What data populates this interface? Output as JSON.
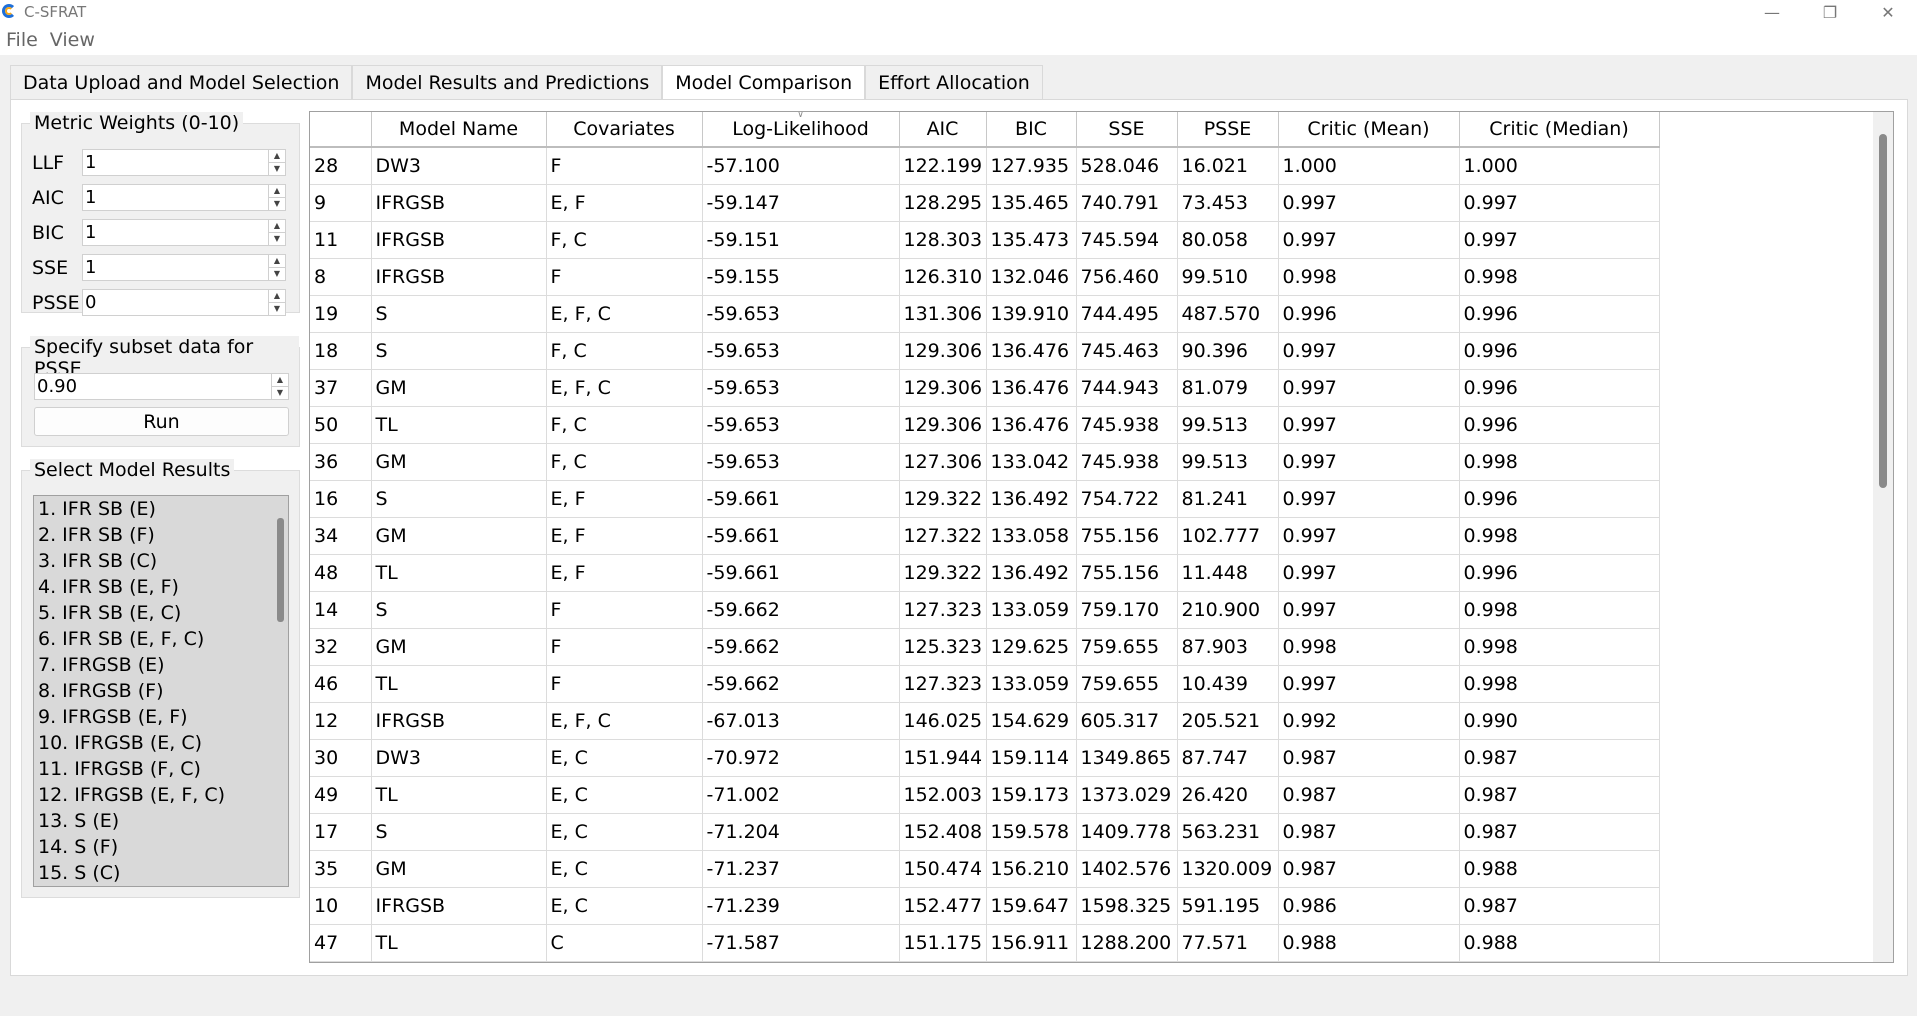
{
  "window": {
    "title": "C-SFRAT"
  },
  "menu": [
    "File",
    "View"
  ],
  "tabs": [
    {
      "label": "Data Upload and Model Selection",
      "active": false
    },
    {
      "label": "Model Results and Predictions",
      "active": false
    },
    {
      "label": "Model Comparison",
      "active": true
    },
    {
      "label": "Effort Allocation",
      "active": false
    }
  ],
  "weights": {
    "title": "Metric Weights (0-10)",
    "items": [
      {
        "label": "LLF",
        "value": "1"
      },
      {
        "label": "AIC",
        "value": "1"
      },
      {
        "label": "BIC",
        "value": "1"
      },
      {
        "label": "SSE",
        "value": "1"
      },
      {
        "label": "PSSE",
        "value": "0"
      }
    ]
  },
  "subset": {
    "title": "Specify subset data for PSSE",
    "value": "0.90",
    "run_label": "Run"
  },
  "results": {
    "title": "Select Model Results",
    "items": [
      "1. IFR SB (E)",
      "2. IFR SB (F)",
      "3. IFR SB (C)",
      "4. IFR SB (E, F)",
      "5. IFR SB (E, C)",
      "6. IFR SB (E, F, C)",
      "7. IFRGSB (E)",
      "8. IFRGSB (F)",
      "9. IFRGSB (E, F)",
      "10. IFRGSB (E, C)",
      "11. IFRGSB (F, C)",
      "12. IFRGSB (E, F, C)",
      "13. S (E)",
      "14. S (F)",
      "15. S (C)"
    ]
  },
  "table": {
    "columns": [
      "",
      "Model Name",
      "Covariates",
      "Log-Likelihood",
      "AIC",
      "BIC",
      "SSE",
      "PSSE",
      "Critic (Mean)",
      "Critic (Median)"
    ],
    "rows": [
      [
        "28",
        "DW3",
        "F",
        "-57.100",
        "122.199",
        "127.935",
        "528.046",
        "16.021",
        "1.000",
        "1.000"
      ],
      [
        "9",
        "IFRGSB",
        "E, F",
        "-59.147",
        "128.295",
        "135.465",
        "740.791",
        "73.453",
        "0.997",
        "0.997"
      ],
      [
        "11",
        "IFRGSB",
        "F, C",
        "-59.151",
        "128.303",
        "135.473",
        "745.594",
        "80.058",
        "0.997",
        "0.997"
      ],
      [
        "8",
        "IFRGSB",
        "F",
        "-59.155",
        "126.310",
        "132.046",
        "756.460",
        "99.510",
        "0.998",
        "0.998"
      ],
      [
        "19",
        "S",
        "E, F, C",
        "-59.653",
        "131.306",
        "139.910",
        "744.495",
        "487.570",
        "0.996",
        "0.996"
      ],
      [
        "18",
        "S",
        "F, C",
        "-59.653",
        "129.306",
        "136.476",
        "745.463",
        "90.396",
        "0.997",
        "0.996"
      ],
      [
        "37",
        "GM",
        "E, F, C",
        "-59.653",
        "129.306",
        "136.476",
        "744.943",
        "81.079",
        "0.997",
        "0.996"
      ],
      [
        "50",
        "TL",
        "F, C",
        "-59.653",
        "129.306",
        "136.476",
        "745.938",
        "99.513",
        "0.997",
        "0.996"
      ],
      [
        "36",
        "GM",
        "F, C",
        "-59.653",
        "127.306",
        "133.042",
        "745.938",
        "99.513",
        "0.997",
        "0.998"
      ],
      [
        "16",
        "S",
        "E, F",
        "-59.661",
        "129.322",
        "136.492",
        "754.722",
        "81.241",
        "0.997",
        "0.996"
      ],
      [
        "34",
        "GM",
        "E, F",
        "-59.661",
        "127.322",
        "133.058",
        "755.156",
        "102.777",
        "0.997",
        "0.998"
      ],
      [
        "48",
        "TL",
        "E, F",
        "-59.661",
        "129.322",
        "136.492",
        "755.156",
        "11.448",
        "0.997",
        "0.996"
      ],
      [
        "14",
        "S",
        "F",
        "-59.662",
        "127.323",
        "133.059",
        "759.170",
        "210.900",
        "0.997",
        "0.998"
      ],
      [
        "32",
        "GM",
        "F",
        "-59.662",
        "125.323",
        "129.625",
        "759.655",
        "87.903",
        "0.998",
        "0.998"
      ],
      [
        "46",
        "TL",
        "F",
        "-59.662",
        "127.323",
        "133.059",
        "759.655",
        "10.439",
        "0.997",
        "0.998"
      ],
      [
        "12",
        "IFRGSB",
        "E, F, C",
        "-67.013",
        "146.025",
        "154.629",
        "605.317",
        "205.521",
        "0.992",
        "0.990"
      ],
      [
        "30",
        "DW3",
        "E, C",
        "-70.972",
        "151.944",
        "159.114",
        "1349.865",
        "87.747",
        "0.987",
        "0.987"
      ],
      [
        "49",
        "TL",
        "E, C",
        "-71.002",
        "152.003",
        "159.173",
        "1373.029",
        "26.420",
        "0.987",
        "0.987"
      ],
      [
        "17",
        "S",
        "E, C",
        "-71.204",
        "152.408",
        "159.578",
        "1409.778",
        "563.231",
        "0.987",
        "0.987"
      ],
      [
        "35",
        "GM",
        "E, C",
        "-71.237",
        "150.474",
        "156.210",
        "1402.576",
        "1320.009",
        "0.987",
        "0.988"
      ],
      [
        "10",
        "IFRGSB",
        "E, C",
        "-71.239",
        "152.477",
        "159.647",
        "1598.325",
        "591.195",
        "0.986",
        "0.987"
      ],
      [
        "47",
        "TL",
        "C",
        "-71.587",
        "151.175",
        "156.911",
        "1288.200",
        "77.571",
        "0.988",
        "0.988"
      ]
    ]
  }
}
